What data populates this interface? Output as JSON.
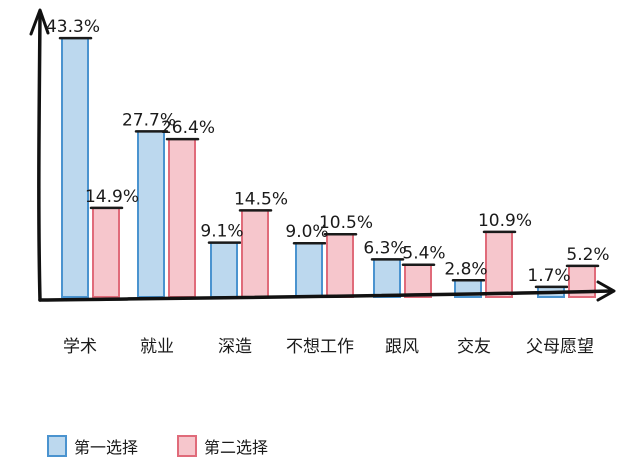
{
  "chart_data": {
    "type": "bar",
    "categories": [
      "学术",
      "就业",
      "深造",
      "不想工作",
      "跟风",
      "交友",
      "父母愿望"
    ],
    "series": [
      {
        "name": "第一选择",
        "values": [
          43.3,
          27.7,
          9.1,
          9.0,
          6.3,
          2.8,
          1.7
        ],
        "labels": [
          "43.3%",
          "27.7%",
          "9.1%",
          "9.0%",
          "6.3%",
          "2.8%",
          "1.7%"
        ]
      },
      {
        "name": "第二选择",
        "values": [
          14.9,
          26.4,
          14.5,
          10.5,
          5.4,
          10.9,
          5.2
        ],
        "labels": [
          "14.9%",
          "26.4%",
          "14.5%",
          "10.5%",
          "5.4%",
          "10.9%",
          "5.2%"
        ]
      }
    ],
    "ylim": [
      0,
      45
    ],
    "grid": false,
    "legend_position": "bottom-left",
    "colors": {
      "series1_fill": "#bcd8ee",
      "series1_stroke": "#4a93cf",
      "series2_fill": "#f6c6cc",
      "series2_stroke": "#e06b7a",
      "axis": "#111111"
    }
  }
}
